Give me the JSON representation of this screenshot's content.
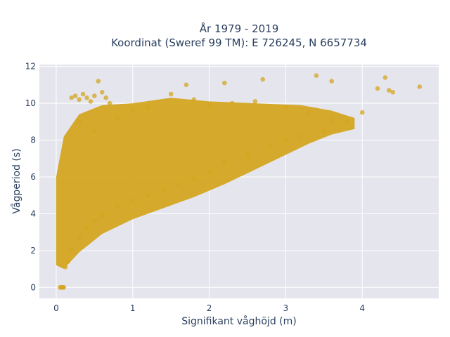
{
  "chart_data": {
    "type": "scatter",
    "title": "År 1979 - 2019",
    "subtitle": "Koordinat (Sweref 99 TM): E 726245, N 6657734",
    "xlabel": "Signifikant våghöjd (m)",
    "ylabel": "Vågperiod (s)",
    "xlim": [
      -0.22,
      5.0
    ],
    "ylim": [
      -0.6,
      12.1
    ],
    "x_ticks": [
      0,
      1,
      2,
      3,
      4
    ],
    "y_ticks": [
      0,
      2,
      4,
      6,
      8,
      10,
      12
    ],
    "grid": true,
    "legend": "none",
    "marker_color": "#d4a520",
    "series": [
      {
        "x": [
          0.05,
          0.06,
          0.07,
          0.08,
          0.09,
          0.1,
          0.12,
          0.15,
          0.2,
          0.3,
          0.4,
          0.5,
          0.6,
          0.8,
          1.0,
          1.2,
          1.4,
          1.6,
          1.8,
          2.0,
          2.2,
          2.5,
          2.8,
          3.0,
          3.2,
          3.5,
          0.2,
          0.25,
          0.3,
          0.35,
          0.4,
          0.45,
          0.5,
          0.55,
          0.6,
          0.65,
          0.7,
          0.3,
          0.5,
          0.8,
          1.0,
          1.2,
          1.5,
          1.8,
          2.0,
          2.3,
          2.6,
          3.0,
          3.3,
          3.6,
          3.8,
          4.0,
          4.2,
          4.3,
          4.35,
          4.4,
          4.75,
          3.6,
          3.4,
          2.7,
          2.2,
          1.7
        ],
        "y": [
          0.0,
          0.0,
          0.0,
          0.0,
          0.0,
          0.0,
          1.1,
          1.4,
          2.1,
          2.7,
          3.2,
          3.6,
          3.9,
          4.4,
          4.7,
          5.0,
          5.3,
          5.6,
          5.9,
          6.3,
          6.8,
          7.2,
          7.7,
          8.0,
          8.2,
          8.5,
          10.3,
          10.4,
          10.2,
          10.5,
          10.3,
          10.1,
          10.4,
          11.2,
          10.6,
          10.3,
          10.0,
          9.0,
          8.5,
          9.2,
          9.6,
          9.8,
          10.5,
          10.2,
          9.9,
          10.0,
          10.1,
          9.8,
          9.5,
          9.1,
          9.0,
          9.5,
          10.8,
          11.4,
          10.7,
          10.6,
          10.9,
          11.2,
          11.5,
          11.3,
          11.1,
          11.0
        ]
      }
    ]
  }
}
